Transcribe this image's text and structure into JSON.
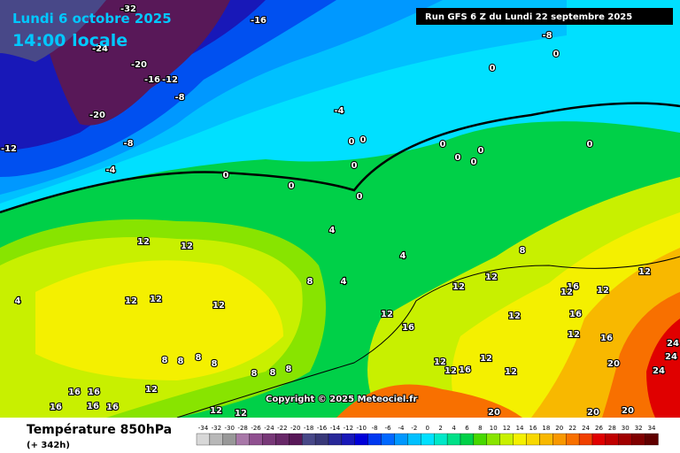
{
  "header": {
    "date": "Lundi 6 octobre 2025",
    "time": "14:00 locale",
    "run": "Run GFS 6 Z du Lundi 22 septembre 2025"
  },
  "footer": {
    "parameter": "Température 850hPa",
    "lead": "(+ 342h)",
    "copyright": "Copyright © 2025 Meteociel.fr"
  },
  "scale": {
    "values": [
      -34,
      -32,
      -30,
      -28,
      -26,
      -24,
      -22,
      -20,
      -18,
      -16,
      -14,
      -12,
      -10,
      -8,
      -6,
      -4,
      -2,
      0,
      2,
      4,
      6,
      8,
      10,
      12,
      14,
      16,
      18,
      20,
      22,
      24,
      26,
      28,
      30,
      32,
      34
    ],
    "colors": [
      "#d8d8d8",
      "#b8b8b8",
      "#989898",
      "#a878a8",
      "#905090",
      "#783878",
      "#682868",
      "#581858",
      "#484888",
      "#383878",
      "#282898",
      "#1818b8",
      "#0000d8",
      "#0038f0",
      "#0068ff",
      "#0098ff",
      "#00c0ff",
      "#00e0ff",
      "#00e8c8",
      "#00e088",
      "#00d048",
      "#48d800",
      "#88e400",
      "#c8f000",
      "#f4f000",
      "#f8d800",
      "#f8b800",
      "#f89800",
      "#f87000",
      "#f04000",
      "#e00000",
      "#c00000",
      "#a00000",
      "#800000",
      "#600000"
    ]
  },
  "map": {
    "contour_labels": [
      -32,
      -16,
      -24,
      -20,
      -16,
      -12,
      -8,
      -20,
      -8,
      -12,
      -4,
      -8,
      0,
      0,
      -4,
      0,
      0,
      0,
      0,
      0,
      0,
      0,
      0,
      0,
      0,
      0,
      4,
      12,
      12,
      4,
      12,
      12,
      12,
      8,
      4,
      4,
      8,
      12,
      12,
      12,
      16,
      12,
      12,
      12,
      16,
      12,
      16,
      12,
      16,
      8,
      8,
      8,
      8,
      8,
      8,
      8,
      12,
      12,
      16,
      12,
      12,
      20,
      24,
      24,
      24,
      16,
      16,
      12,
      16,
      16,
      16,
      12,
      12,
      20,
      20,
      20
    ]
  }
}
